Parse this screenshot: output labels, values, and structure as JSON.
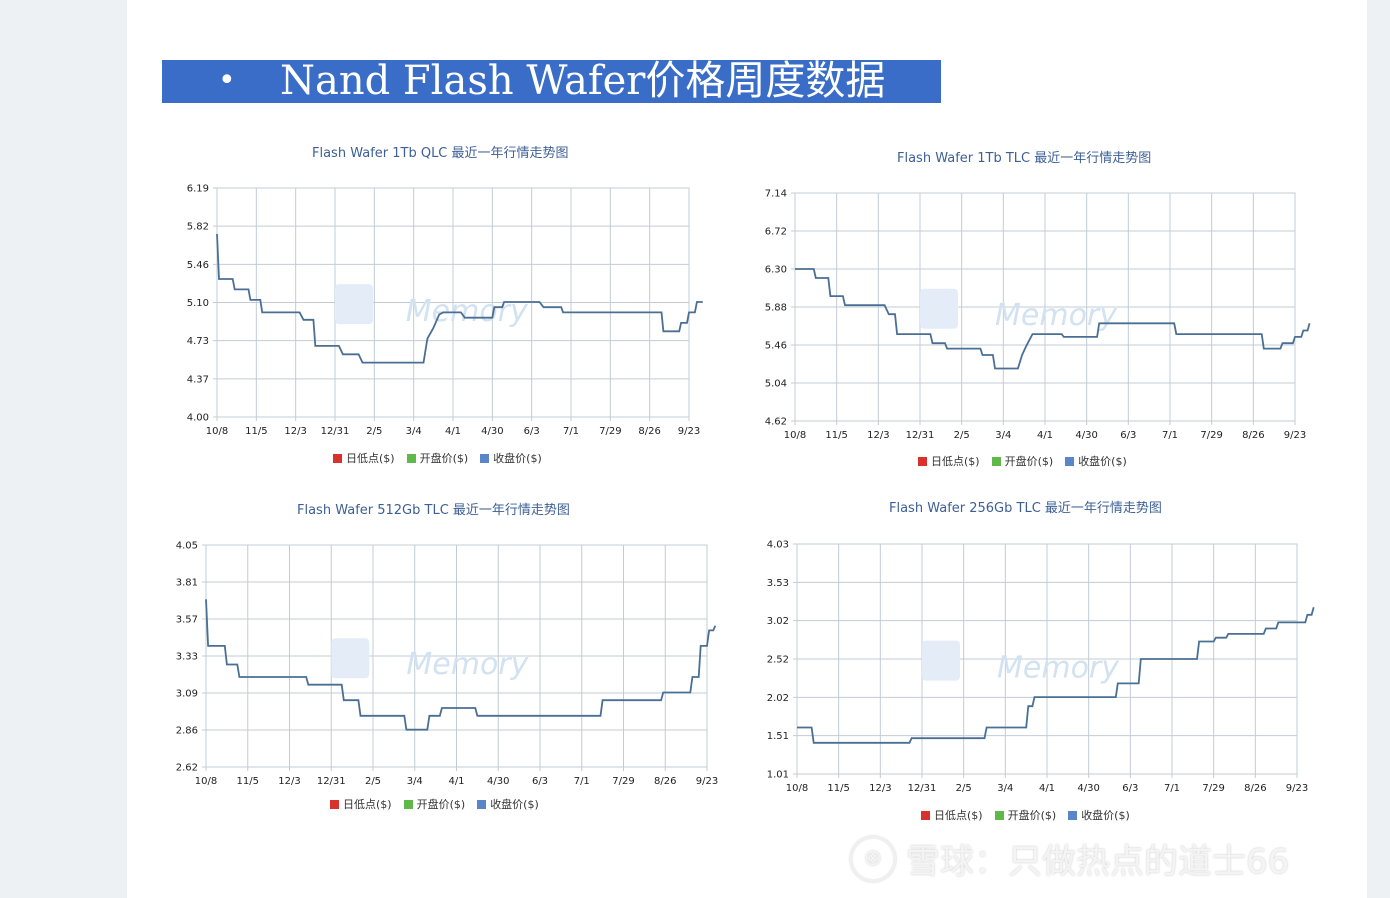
{
  "heading": {
    "bullet": "•",
    "text": "Nand Flash Wafer价格周度数据"
  },
  "legend": [
    {
      "label": "日低点($)",
      "color": "#d9312b"
    },
    {
      "label": "开盘价($)",
      "color": "#5fb84a"
    },
    {
      "label": "收盘价($)",
      "color": "#5a86c9"
    }
  ],
  "watermark_text": "Memory",
  "footer": {
    "logo_glyph": "⊗",
    "text": "雪球：只做热点的道士66"
  },
  "chart_data": [
    {
      "type": "line",
      "title": "Flash Wafer 1Tb QLC 最近一年行情走势图",
      "x_tick_labels": [
        "10/8",
        "11/5",
        "12/3",
        "12/31",
        "2/5",
        "3/4",
        "4/1",
        "4/30",
        "6/3",
        "7/1",
        "7/29",
        "8/26",
        "9/23"
      ],
      "y_tick_labels": [
        "6.19",
        "5.82",
        "5.46",
        "5.10",
        "4.73",
        "4.37",
        "4.00"
      ],
      "ylim": [
        4.0,
        6.19
      ],
      "series": [
        {
          "color": "#4a6f95",
          "points": [
            [
              0,
              5.75
            ],
            [
              0.05,
              5.32
            ],
            [
              0.4,
              5.32
            ],
            [
              0.45,
              5.22
            ],
            [
              0.8,
              5.22
            ],
            [
              0.85,
              5.12
            ],
            [
              1.1,
              5.12
            ],
            [
              1.15,
              5.0
            ],
            [
              2.1,
              5.0
            ],
            [
              2.2,
              4.93
            ],
            [
              2.45,
              4.93
            ],
            [
              2.5,
              4.68
            ],
            [
              3.1,
              4.68
            ],
            [
              3.2,
              4.6
            ],
            [
              3.6,
              4.6
            ],
            [
              3.7,
              4.52
            ],
            [
              5.25,
              4.52
            ],
            [
              5.35,
              4.75
            ],
            [
              5.5,
              4.85
            ],
            [
              5.65,
              4.98
            ],
            [
              5.75,
              5.0
            ],
            [
              6.2,
              5.0
            ],
            [
              6.3,
              4.95
            ],
            [
              7.0,
              4.95
            ],
            [
              7.05,
              5.05
            ],
            [
              7.25,
              5.05
            ],
            [
              7.3,
              5.1
            ],
            [
              8.2,
              5.1
            ],
            [
              8.3,
              5.05
            ],
            [
              8.75,
              5.05
            ],
            [
              8.8,
              5.0
            ],
            [
              11.3,
              5.0
            ],
            [
              11.35,
              4.82
            ],
            [
              11.75,
              4.82
            ],
            [
              11.8,
              4.9
            ],
            [
              11.95,
              4.9
            ],
            [
              12.0,
              5.0
            ],
            [
              12.15,
              5.0
            ],
            [
              12.2,
              5.1
            ],
            [
              12.35,
              5.1
            ]
          ]
        }
      ]
    },
    {
      "type": "line",
      "title": "Flash Wafer 1Tb TLC 最近一年行情走势图",
      "x_tick_labels": [
        "10/8",
        "11/5",
        "12/3",
        "12/31",
        "2/5",
        "3/4",
        "4/1",
        "4/30",
        "6/3",
        "7/1",
        "7/29",
        "8/26",
        "9/23"
      ],
      "y_tick_labels": [
        "7.14",
        "6.72",
        "6.30",
        "5.88",
        "5.46",
        "5.04",
        "4.62"
      ],
      "ylim": [
        4.62,
        7.14
      ],
      "series": [
        {
          "color": "#4a6f95",
          "points": [
            [
              0,
              6.3
            ],
            [
              0.45,
              6.3
            ],
            [
              0.5,
              6.2
            ],
            [
              0.8,
              6.2
            ],
            [
              0.85,
              6.0
            ],
            [
              1.15,
              6.0
            ],
            [
              1.2,
              5.9
            ],
            [
              2.15,
              5.9
            ],
            [
              2.25,
              5.8
            ],
            [
              2.4,
              5.8
            ],
            [
              2.45,
              5.58
            ],
            [
              3.25,
              5.58
            ],
            [
              3.3,
              5.48
            ],
            [
              3.6,
              5.48
            ],
            [
              3.65,
              5.42
            ],
            [
              4.45,
              5.42
            ],
            [
              4.5,
              5.35
            ],
            [
              4.75,
              5.35
            ],
            [
              4.8,
              5.2
            ],
            [
              5.35,
              5.2
            ],
            [
              5.45,
              5.35
            ],
            [
              5.55,
              5.45
            ],
            [
              5.7,
              5.58
            ],
            [
              6.4,
              5.58
            ],
            [
              6.45,
              5.55
            ],
            [
              7.25,
              5.55
            ],
            [
              7.3,
              5.7
            ],
            [
              9.1,
              5.7
            ],
            [
              9.15,
              5.58
            ],
            [
              11.2,
              5.58
            ],
            [
              11.25,
              5.42
            ],
            [
              11.65,
              5.42
            ],
            [
              11.7,
              5.48
            ],
            [
              11.95,
              5.48
            ],
            [
              12.0,
              5.55
            ],
            [
              12.15,
              5.55
            ],
            [
              12.2,
              5.62
            ],
            [
              12.3,
              5.62
            ],
            [
              12.35,
              5.7
            ]
          ]
        }
      ]
    },
    {
      "type": "line",
      "title": "Flash Wafer 512Gb TLC 最近一年行情走势图",
      "x_tick_labels": [
        "10/8",
        "11/5",
        "12/3",
        "12/31",
        "2/5",
        "3/4",
        "4/1",
        "4/30",
        "6/3",
        "7/1",
        "7/29",
        "8/26",
        "9/23"
      ],
      "y_tick_labels": [
        "4.05",
        "3.81",
        "3.57",
        "3.33",
        "3.09",
        "2.86",
        "2.62"
      ],
      "ylim": [
        2.62,
        4.05
      ],
      "series": [
        {
          "color": "#4a6f95",
          "points": [
            [
              0,
              3.7
            ],
            [
              0.05,
              3.4
            ],
            [
              0.45,
              3.4
            ],
            [
              0.5,
              3.28
            ],
            [
              0.75,
              3.28
            ],
            [
              0.8,
              3.2
            ],
            [
              2.4,
              3.2
            ],
            [
              2.45,
              3.15
            ],
            [
              3.25,
              3.15
            ],
            [
              3.3,
              3.05
            ],
            [
              3.65,
              3.05
            ],
            [
              3.7,
              2.95
            ],
            [
              4.75,
              2.95
            ],
            [
              4.8,
              2.86
            ],
            [
              5.3,
              2.86
            ],
            [
              5.35,
              2.95
            ],
            [
              5.6,
              2.95
            ],
            [
              5.65,
              3.0
            ],
            [
              6.45,
              3.0
            ],
            [
              6.5,
              2.95
            ],
            [
              9.45,
              2.95
            ],
            [
              9.5,
              3.05
            ],
            [
              10.9,
              3.05
            ],
            [
              10.95,
              3.1
            ],
            [
              11.6,
              3.1
            ],
            [
              11.65,
              3.2
            ],
            [
              11.8,
              3.2
            ],
            [
              11.85,
              3.4
            ],
            [
              12.0,
              3.4
            ],
            [
              12.05,
              3.5
            ],
            [
              12.15,
              3.5
            ],
            [
              12.2,
              3.53
            ]
          ]
        }
      ]
    },
    {
      "type": "line",
      "title": "Flash Wafer 256Gb TLC 最近一年行情走势图",
      "x_tick_labels": [
        "10/8",
        "11/5",
        "12/3",
        "12/31",
        "2/5",
        "3/4",
        "4/1",
        "4/30",
        "6/3",
        "7/1",
        "7/29",
        "8/26",
        "9/23"
      ],
      "y_tick_labels": [
        "4.03",
        "3.53",
        "3.02",
        "2.52",
        "2.02",
        "1.51",
        "1.01"
      ],
      "ylim": [
        1.01,
        4.03
      ],
      "series": [
        {
          "color": "#4a6f95",
          "points": [
            [
              0,
              1.62
            ],
            [
              0.35,
              1.62
            ],
            [
              0.4,
              1.42
            ],
            [
              2.7,
              1.42
            ],
            [
              2.75,
              1.48
            ],
            [
              4.5,
              1.48
            ],
            [
              4.55,
              1.62
            ],
            [
              5.5,
              1.62
            ],
            [
              5.55,
              1.9
            ],
            [
              5.65,
              1.9
            ],
            [
              5.7,
              2.02
            ],
            [
              7.65,
              2.02
            ],
            [
              7.7,
              2.2
            ],
            [
              8.2,
              2.2
            ],
            [
              8.25,
              2.52
            ],
            [
              9.6,
              2.52
            ],
            [
              9.65,
              2.75
            ],
            [
              10.0,
              2.75
            ],
            [
              10.05,
              2.8
            ],
            [
              10.3,
              2.8
            ],
            [
              10.35,
              2.85
            ],
            [
              11.2,
              2.85
            ],
            [
              11.25,
              2.92
            ],
            [
              11.5,
              2.92
            ],
            [
              11.55,
              3.0
            ],
            [
              12.2,
              3.0
            ],
            [
              12.25,
              3.1
            ],
            [
              12.35,
              3.1
            ],
            [
              12.4,
              3.2
            ]
          ]
        }
      ]
    }
  ]
}
